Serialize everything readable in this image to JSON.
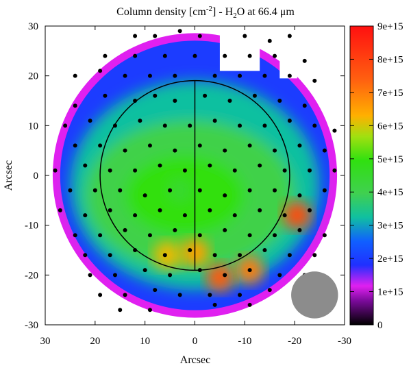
{
  "chart_data": {
    "type": "heatmap",
    "title_main": "Column density [cm",
    "title_sup": "-2",
    "title_mid": "] - H",
    "title_sub": "2",
    "title_end": "O at 66.4 μm",
    "xlabel": "Arcsec",
    "ylabel": "Arcsec",
    "xlim": [
      30,
      -30
    ],
    "ylim": [
      -30,
      30
    ],
    "x_ticks": [
      30,
      20,
      10,
      0,
      -10,
      -20,
      -30
    ],
    "y_ticks": [
      30,
      20,
      10,
      0,
      -10,
      -20,
      -30
    ],
    "colorbar": {
      "min": 0,
      "max": 9000000000000000.0,
      "ticks": [
        "0",
        "1e+15",
        "2e+15",
        "3e+15",
        "4e+15",
        "5e+15",
        "6e+15",
        "7e+15",
        "8e+15",
        "9e+15"
      ],
      "stops": [
        {
          "v": 0.0,
          "c": "#000000"
        },
        {
          "v": 0.08,
          "c": "#7a0a9a"
        },
        {
          "v": 0.13,
          "c": "#e020f0"
        },
        {
          "v": 0.2,
          "c": "#2030ff"
        },
        {
          "v": 0.28,
          "c": "#1060ff"
        },
        {
          "v": 0.36,
          "c": "#10c0a0"
        },
        {
          "v": 0.44,
          "c": "#40d050"
        },
        {
          "v": 0.55,
          "c": "#30e010"
        },
        {
          "v": 0.63,
          "c": "#a0e010"
        },
        {
          "v": 0.7,
          "c": "#ffb000"
        },
        {
          "v": 0.82,
          "c": "#ff6010"
        },
        {
          "v": 1.0,
          "c": "#ff1010"
        }
      ]
    },
    "circle": {
      "center": [
        0,
        0
      ],
      "radius": 19
    },
    "beam": {
      "center": [
        -24,
        -24
      ],
      "radius": 4.7
    },
    "hotspots": [
      {
        "x": -5,
        "y": -20.5,
        "value": 7500000000000000.0
      },
      {
        "x": -11,
        "y": -19,
        "value": 7000000000000000.0
      },
      {
        "x": -20.5,
        "y": -8,
        "value": 7800000000000000.0
      },
      {
        "x": 0,
        "y": -15.5,
        "value": 6500000000000000.0
      },
      {
        "x": 5.5,
        "y": -16,
        "value": 6200000000000000.0
      },
      {
        "x": 3,
        "y": -3,
        "value": 4500000000000000.0
      }
    ],
    "points": [
      [
        12,
        28
      ],
      [
        8,
        28
      ],
      [
        3,
        29
      ],
      [
        -1,
        28
      ],
      [
        -10,
        28
      ],
      [
        -15,
        27
      ],
      [
        -19,
        28
      ],
      [
        18,
        24
      ],
      [
        12,
        24
      ],
      [
        6,
        24
      ],
      [
        0,
        24
      ],
      [
        -6,
        24
      ],
      [
        -11,
        24
      ],
      [
        -16,
        24
      ],
      [
        -22,
        23
      ],
      [
        24,
        20
      ],
      [
        19,
        21
      ],
      [
        14,
        20
      ],
      [
        9,
        20
      ],
      [
        4,
        20
      ],
      [
        -4,
        20
      ],
      [
        -9,
        20
      ],
      [
        -14,
        20
      ],
      [
        -19,
        20
      ],
      [
        -24,
        19
      ],
      [
        24,
        14
      ],
      [
        18,
        16
      ],
      [
        12,
        15
      ],
      [
        8,
        16
      ],
      [
        4,
        15
      ],
      [
        -2,
        16
      ],
      [
        -7,
        15
      ],
      [
        -12,
        16
      ],
      [
        -17,
        15
      ],
      [
        -22,
        14
      ],
      [
        26,
        10
      ],
      [
        21,
        11
      ],
      [
        16,
        10
      ],
      [
        11,
        11
      ],
      [
        6,
        10
      ],
      [
        1,
        10
      ],
      [
        -4,
        11
      ],
      [
        -9,
        10
      ],
      [
        -14,
        10
      ],
      [
        -19,
        11
      ],
      [
        -24,
        10
      ],
      [
        -28,
        9
      ],
      [
        24,
        6
      ],
      [
        19,
        6
      ],
      [
        14,
        5
      ],
      [
        9,
        6
      ],
      [
        4,
        5
      ],
      [
        -1,
        6
      ],
      [
        -6,
        5
      ],
      [
        -11,
        6
      ],
      [
        -16,
        5
      ],
      [
        -21,
        6
      ],
      [
        -26,
        5
      ],
      [
        28,
        1
      ],
      [
        22,
        2
      ],
      [
        17,
        1
      ],
      [
        12,
        1
      ],
      [
        7,
        2
      ],
      [
        2,
        1
      ],
      [
        -3,
        2
      ],
      [
        -8,
        1
      ],
      [
        -13,
        2
      ],
      [
        -18,
        1
      ],
      [
        -23,
        1
      ],
      [
        -28,
        1
      ],
      [
        25,
        -3
      ],
      [
        20,
        -3
      ],
      [
        15,
        -3
      ],
      [
        10,
        -4
      ],
      [
        5,
        -3
      ],
      [
        -1,
        -3
      ],
      [
        -6,
        -4
      ],
      [
        -11,
        -3
      ],
      [
        -16,
        -3
      ],
      [
        -21,
        -4
      ],
      [
        -26,
        -3
      ],
      [
        27,
        -7
      ],
      [
        22,
        -8
      ],
      [
        17,
        -7
      ],
      [
        12,
        -8
      ],
      [
        7,
        -7
      ],
      [
        2,
        -8
      ],
      [
        -3,
        -7
      ],
      [
        -8,
        -8
      ],
      [
        -13,
        -7
      ],
      [
        -18,
        -8
      ],
      [
        -23,
        -7
      ],
      [
        24,
        -12
      ],
      [
        19,
        -12
      ],
      [
        14,
        -11
      ],
      [
        9,
        -12
      ],
      [
        4,
        -11
      ],
      [
        -1,
        -12
      ],
      [
        -6,
        -11
      ],
      [
        -11,
        -12
      ],
      [
        -16,
        -12
      ],
      [
        -21,
        -11
      ],
      [
        -26,
        -12
      ],
      [
        22,
        -16
      ],
      [
        17,
        -16
      ],
      [
        12,
        -15
      ],
      [
        6,
        -16
      ],
      [
        1,
        -15
      ],
      [
        -4,
        -16
      ],
      [
        -9,
        -16
      ],
      [
        -14,
        -15
      ],
      [
        -19,
        -16
      ],
      [
        -24,
        -16
      ],
      [
        21,
        -20
      ],
      [
        16,
        -20
      ],
      [
        10,
        -19
      ],
      [
        5,
        -20
      ],
      [
        -1,
        -19
      ],
      [
        -6,
        -20
      ],
      [
        -11,
        -19
      ],
      [
        -17,
        -20
      ],
      [
        -22,
        -20
      ],
      [
        19,
        -24
      ],
      [
        14,
        -24
      ],
      [
        8,
        -23
      ],
      [
        3,
        -24
      ],
      [
        -3,
        -24
      ],
      [
        -9,
        -24
      ],
      [
        -15,
        -23
      ],
      [
        15,
        -27
      ],
      [
        9,
        -27
      ],
      [
        -4,
        -26
      ],
      [
        -11,
        -26
      ]
    ]
  }
}
